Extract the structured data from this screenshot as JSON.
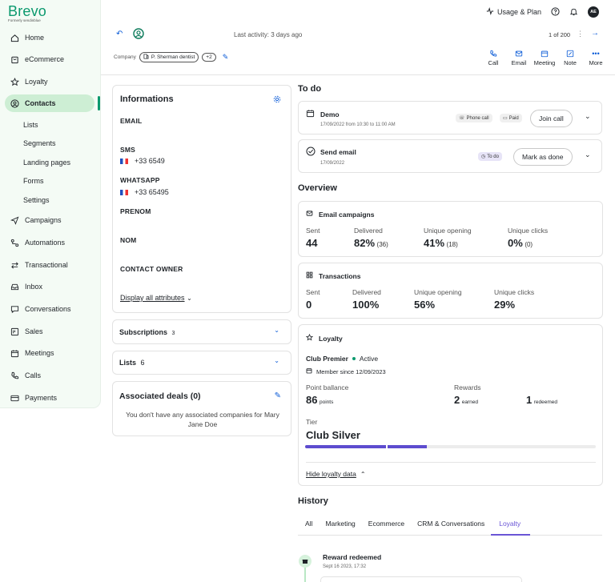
{
  "brand": {
    "name": "Brevo",
    "formerly": "Formerly sendinblue"
  },
  "sidebar": {
    "items": [
      {
        "label": "Home",
        "icon": "home-icon"
      },
      {
        "label": "eCommerce",
        "icon": "shop-icon"
      },
      {
        "label": "Loyalty",
        "icon": "star-icon"
      },
      {
        "label": "Contacts",
        "icon": "contacts-icon"
      },
      {
        "label": "Campaigns",
        "icon": "send-icon"
      },
      {
        "label": "Automations",
        "icon": "automation-icon"
      },
      {
        "label": "Transactional",
        "icon": "transactional-icon"
      },
      {
        "label": "Inbox",
        "icon": "inbox-icon"
      },
      {
        "label": "Conversations",
        "icon": "chat-icon"
      },
      {
        "label": "Sales",
        "icon": "sales-icon"
      },
      {
        "label": "Meetings",
        "icon": "calendar-icon"
      },
      {
        "label": "Calls",
        "icon": "phone-icon"
      },
      {
        "label": "Payments",
        "icon": "card-icon"
      }
    ],
    "contacts_sub": [
      "Lists",
      "Segments",
      "Landing pages",
      "Forms",
      "Settings"
    ],
    "accent": "#0b996e"
  },
  "topbar": {
    "usage_label": "Usage & Plan",
    "avatar_initials": "AE"
  },
  "contact_header": {
    "last_activity": "Last activity: 3 days ago",
    "pager": "1 of 200",
    "company_label": "Company",
    "company_chip": "P. Sherman dentist",
    "more_chip": "+2",
    "actions": [
      "Call",
      "Email",
      "Meeting",
      "Note",
      "More"
    ]
  },
  "informations": {
    "title": "Informations",
    "email_label": "EMAIL",
    "sms_label": "SMS",
    "sms_value": "+33 6549",
    "whatsapp_label": "WHATSAPP",
    "whatsapp_value": "+33 65495",
    "prenom_label": "PRENOM",
    "nom_label": "NOM",
    "owner_label": "CONTACT OWNER",
    "display_all": "Display all attributes"
  },
  "subscriptions": {
    "label": "Subscriptions",
    "count": "3"
  },
  "lists": {
    "label": "Lists",
    "count": "6"
  },
  "deals": {
    "title": "Associated deals (0)",
    "empty": "You don't have any associated companies for Mary Jane Doe"
  },
  "todo": {
    "title": "To do",
    "items": [
      {
        "title": "Demo",
        "date": "17/09/2022 from 10:30 to 11:00 AM",
        "tag1": "Phone call",
        "tag2": "Paid",
        "button": "Join call"
      },
      {
        "title": "Send email",
        "date": "17/09/2022",
        "tag1": "To do",
        "button": "Mark as done"
      }
    ]
  },
  "overview": {
    "title": "Overview",
    "email_campaigns": {
      "title": "Email campaigns",
      "stats": [
        {
          "label": "Sent",
          "value": "44",
          "sub": ""
        },
        {
          "label": "Delivered",
          "value": "82%",
          "sub": "(36)"
        },
        {
          "label": "Unique opening",
          "value": "41%",
          "sub": "(18)"
        },
        {
          "label": "Unique clicks",
          "value": "0%",
          "sub": "(0)"
        }
      ]
    },
    "transactions": {
      "title": "Transactions",
      "stats": [
        {
          "label": "Sent",
          "value": "0"
        },
        {
          "label": "Delivered",
          "value": "100%"
        },
        {
          "label": "Unique opening",
          "value": "56%"
        },
        {
          "label": "Unique clicks",
          "value": "29%"
        }
      ]
    },
    "loyalty": {
      "title": "Loyalty",
      "club": "Club Premier",
      "status": "Active",
      "member_since": "Member since 12/09/2023",
      "balance_label": "Point ballance",
      "balance_value": "86",
      "balance_unit": "points",
      "rewards_label": "Rewards",
      "earned_value": "2",
      "earned_unit": "earned",
      "redeemed_value": "1",
      "redeemed_unit": "redeemed",
      "tier_label": "Tier",
      "tier_value": "Club Silver",
      "tier_progress": 0.42,
      "hide_link": "Hide loyalty data"
    }
  },
  "history": {
    "title": "History",
    "tabs": [
      "All",
      "Marketing",
      "Ecommerce",
      "CRM & Conversations",
      "Loyalty"
    ],
    "active_tab": "Loyalty",
    "event_title": "Reward redeemed",
    "event_date": "Sept 16 2023, 17:32"
  }
}
